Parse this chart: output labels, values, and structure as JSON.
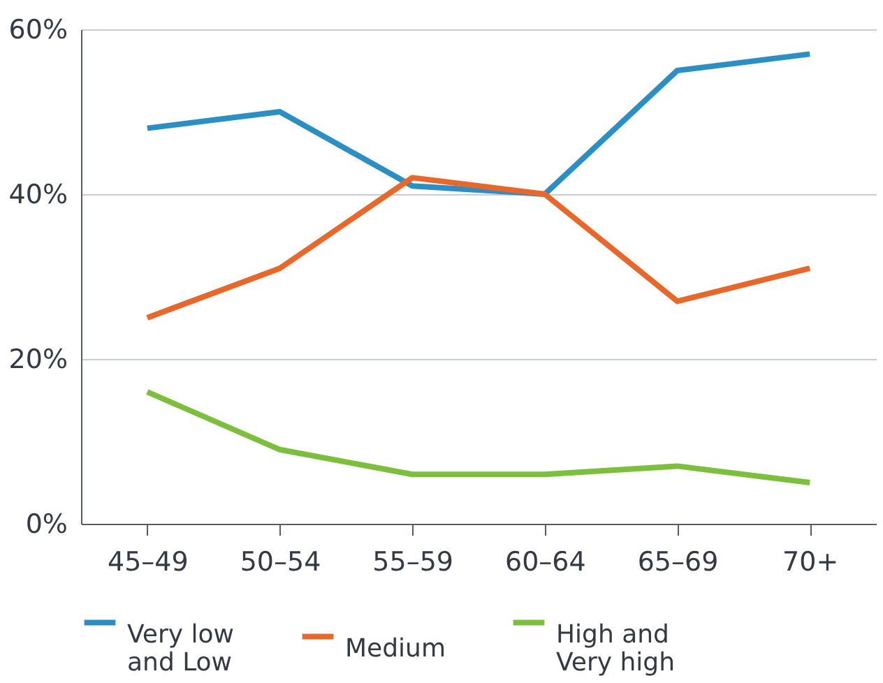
{
  "chart_data": {
    "type": "line",
    "categories": [
      "45–49",
      "50–54",
      "55–59",
      "60–64",
      "65–69",
      "70+"
    ],
    "series": [
      {
        "name": "Very low and Low",
        "color": "#2b8fc4",
        "values": [
          48,
          50,
          41,
          40,
          55,
          57
        ]
      },
      {
        "name": "Medium",
        "color": "#e8672a",
        "values": [
          25,
          31,
          42,
          40,
          27,
          31
        ]
      },
      {
        "name": "High and Very high",
        "color": "#7bbf3d",
        "values": [
          16,
          9,
          6,
          6,
          7,
          5
        ]
      }
    ],
    "ylim": [
      0,
      60
    ],
    "yticks": [
      {
        "value": 0,
        "label": "0%"
      },
      {
        "value": 20,
        "label": "20%"
      },
      {
        "value": 40,
        "label": "40%"
      },
      {
        "value": 60,
        "label": "60%"
      }
    ],
    "grid": "y",
    "legend": "bottom",
    "marker": "none",
    "line_style": "solid"
  }
}
